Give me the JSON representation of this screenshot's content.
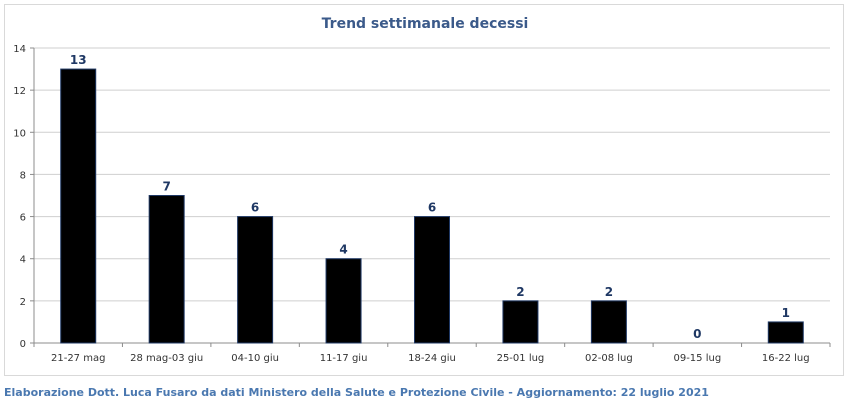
{
  "chart_data": {
    "type": "bar",
    "title": "Trend settimanale decessi",
    "categories": [
      "21-27 mag",
      "28 mag-03 giu",
      "04-10 giu",
      "11-17 giu",
      "18-24 giu",
      "25-01 lug",
      "02-08 lug",
      "09-15 lug",
      "16-22 lug"
    ],
    "values": [
      13,
      7,
      6,
      4,
      6,
      2,
      2,
      0,
      1
    ],
    "data_labels": [
      "13",
      "7",
      "6",
      "4",
      "6",
      "2",
      "2",
      "0",
      "1"
    ],
    "ylim": [
      0,
      14
    ],
    "yticks": [
      0,
      2,
      4,
      6,
      8,
      10,
      12,
      14
    ],
    "xlabel": "",
    "ylabel": "",
    "grid": true,
    "legend": "none",
    "colors": {
      "bar": "#000000",
      "bar_outline": "#1f3864",
      "title": "#3b5a8a",
      "data_label": "#1f3864",
      "grid": "#cfcfcf"
    }
  },
  "footer": {
    "credit": "Elaborazione Dott. Luca Fusaro da dati Ministero della Salute e Protezione Civile - Aggiornamento: 22 luglio 2021"
  }
}
